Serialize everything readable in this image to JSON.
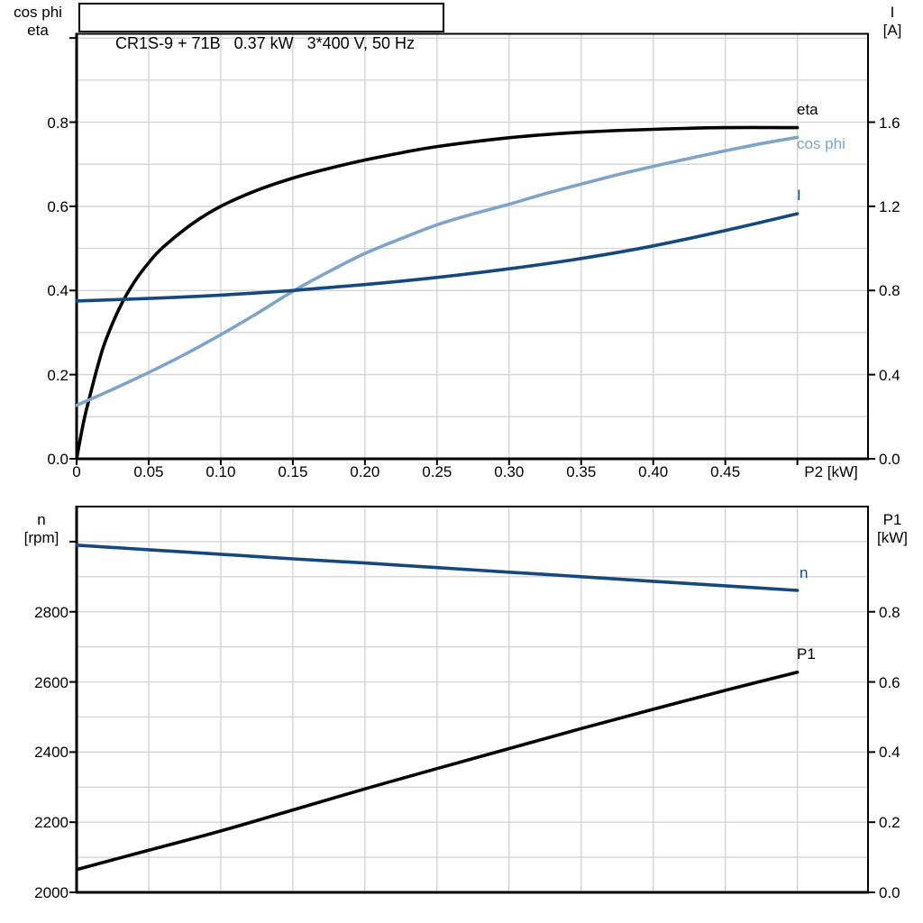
{
  "header": {
    "model": "CR1S-9 + 71B",
    "rated_power": "0.37 kW",
    "supply": "3*400 V, 50 Hz",
    "text": "CR1S-9 + 71B   0.37 kW   3*400 V, 50 Hz"
  },
  "colors": {
    "black": "#000000",
    "dark_blue": "#15497e",
    "light_blue": "#7fa4c7",
    "grid": "#d4d4d4",
    "frame": "#000000"
  },
  "chart_data": [
    {
      "id": "motor-efficiency-chart",
      "type": "line",
      "x_axis": {
        "label": "P2 [kW]",
        "min": 0,
        "max": 0.549,
        "grid_step": 0.05,
        "ticks": [
          0,
          0.05,
          0.1,
          0.15,
          0.2,
          0.25,
          0.3,
          0.35,
          0.4,
          0.45,
          0.5
        ],
        "tick_labels": [
          "0",
          "0.05",
          "0.10",
          "0.15",
          "0.20",
          "0.25",
          "0.30",
          "0.35",
          "0.40",
          "0.45",
          ""
        ]
      },
      "y_left": {
        "label_lines": [
          "cos phi",
          "eta"
        ],
        "min": 0,
        "max": 1.01,
        "grid_step": 0.1,
        "ticks": [
          0,
          0.2,
          0.4,
          0.6,
          0.8
        ],
        "tick_labels": [
          "0.0",
          "0.2",
          "0.4",
          "0.6",
          "0.8"
        ],
        "extra_ticks": [
          1.0
        ]
      },
      "y_right": {
        "label_lines": [
          "I",
          "[A]"
        ],
        "min": 0,
        "max": 2.02,
        "ticks": [
          0,
          0.4,
          0.8,
          1.2,
          1.6
        ],
        "tick_labels": [
          "0.0",
          "0.4",
          "0.8",
          "1.2",
          "1.6"
        ]
      },
      "grid": true,
      "legend_position": "end-of-curve",
      "series": [
        {
          "name": "eta",
          "label": "eta",
          "axis": "left",
          "color_key": "black",
          "points": [
            [
              0,
              0
            ],
            [
              0.005,
              0.09
            ],
            [
              0.01,
              0.16
            ],
            [
              0.015,
              0.225
            ],
            [
              0.02,
              0.28
            ],
            [
              0.03,
              0.36
            ],
            [
              0.04,
              0.42
            ],
            [
              0.05,
              0.466
            ],
            [
              0.06,
              0.503
            ],
            [
              0.08,
              0.558
            ],
            [
              0.1,
              0.6
            ],
            [
              0.125,
              0.638
            ],
            [
              0.15,
              0.667
            ],
            [
              0.175,
              0.69
            ],
            [
              0.2,
              0.71
            ],
            [
              0.225,
              0.727
            ],
            [
              0.25,
              0.742
            ],
            [
              0.3,
              0.763
            ],
            [
              0.35,
              0.776
            ],
            [
              0.4,
              0.783
            ],
            [
              0.45,
              0.787
            ],
            [
              0.5,
              0.787
            ]
          ]
        },
        {
          "name": "cos_phi",
          "label": "cos phi",
          "axis": "left",
          "color_key": "light_blue",
          "points": [
            [
              0,
              0.127
            ],
            [
              0.025,
              0.165
            ],
            [
              0.05,
              0.205
            ],
            [
              0.075,
              0.248
            ],
            [
              0.1,
              0.295
            ],
            [
              0.125,
              0.345
            ],
            [
              0.15,
              0.398
            ],
            [
              0.175,
              0.445
            ],
            [
              0.2,
              0.488
            ],
            [
              0.225,
              0.523
            ],
            [
              0.25,
              0.556
            ],
            [
              0.275,
              0.582
            ],
            [
              0.3,
              0.605
            ],
            [
              0.325,
              0.63
            ],
            [
              0.35,
              0.653
            ],
            [
              0.375,
              0.675
            ],
            [
              0.4,
              0.695
            ],
            [
              0.425,
              0.714
            ],
            [
              0.45,
              0.732
            ],
            [
              0.475,
              0.749
            ],
            [
              0.5,
              0.764
            ]
          ]
        },
        {
          "name": "current",
          "label": "I",
          "axis": "right",
          "color_key": "dark_blue",
          "points": [
            [
              0,
              0.75
            ],
            [
              0.05,
              0.762
            ],
            [
              0.1,
              0.778
            ],
            [
              0.15,
              0.8
            ],
            [
              0.2,
              0.828
            ],
            [
              0.25,
              0.862
            ],
            [
              0.3,
              0.903
            ],
            [
              0.35,
              0.952
            ],
            [
              0.4,
              1.012
            ],
            [
              0.45,
              1.085
            ],
            [
              0.5,
              1.165
            ]
          ]
        }
      ]
    },
    {
      "id": "speed-power-chart",
      "type": "line",
      "x_axis": {
        "label": "",
        "min": 0,
        "max": 0.549,
        "grid_step": 0.05,
        "ticks": [],
        "tick_labels": []
      },
      "y_left": {
        "label_lines": [
          "n",
          "[rpm]"
        ],
        "min": 2000,
        "max": 3100,
        "grid_step": 100,
        "ticks": [
          2000,
          2200,
          2400,
          2600,
          2800
        ],
        "tick_labels": [
          "2000",
          "2200",
          "2400",
          "2600",
          "2800"
        ],
        "extra_ticks": [
          3000
        ]
      },
      "y_right": {
        "label_lines": [
          "P1",
          "[kW]"
        ],
        "min": 0,
        "max": 1.1,
        "ticks": [
          0,
          0.2,
          0.4,
          0.6,
          0.8
        ],
        "tick_labels": [
          "0.0",
          "0.2",
          "0.4",
          "0.6",
          "0.8"
        ]
      },
      "grid": true,
      "legend_position": "end-of-curve",
      "series": [
        {
          "name": "speed",
          "label": "n",
          "axis": "left",
          "color_key": "dark_blue",
          "points": [
            [
              0,
              2990
            ],
            [
              0.05,
              2977
            ],
            [
              0.1,
              2964
            ],
            [
              0.15,
              2951
            ],
            [
              0.2,
              2939
            ],
            [
              0.25,
              2926
            ],
            [
              0.3,
              2913
            ],
            [
              0.35,
              2900
            ],
            [
              0.4,
              2887
            ],
            [
              0.45,
              2874
            ],
            [
              0.5,
              2861
            ]
          ]
        },
        {
          "name": "p1",
          "label": "P1",
          "axis": "right",
          "color_key": "black",
          "points": [
            [
              0,
              0.065
            ],
            [
              0.05,
              0.12
            ],
            [
              0.1,
              0.175
            ],
            [
              0.15,
              0.235
            ],
            [
              0.2,
              0.295
            ],
            [
              0.25,
              0.353
            ],
            [
              0.3,
              0.41
            ],
            [
              0.35,
              0.467
            ],
            [
              0.4,
              0.522
            ],
            [
              0.45,
              0.576
            ],
            [
              0.5,
              0.628
            ]
          ]
        }
      ]
    }
  ]
}
